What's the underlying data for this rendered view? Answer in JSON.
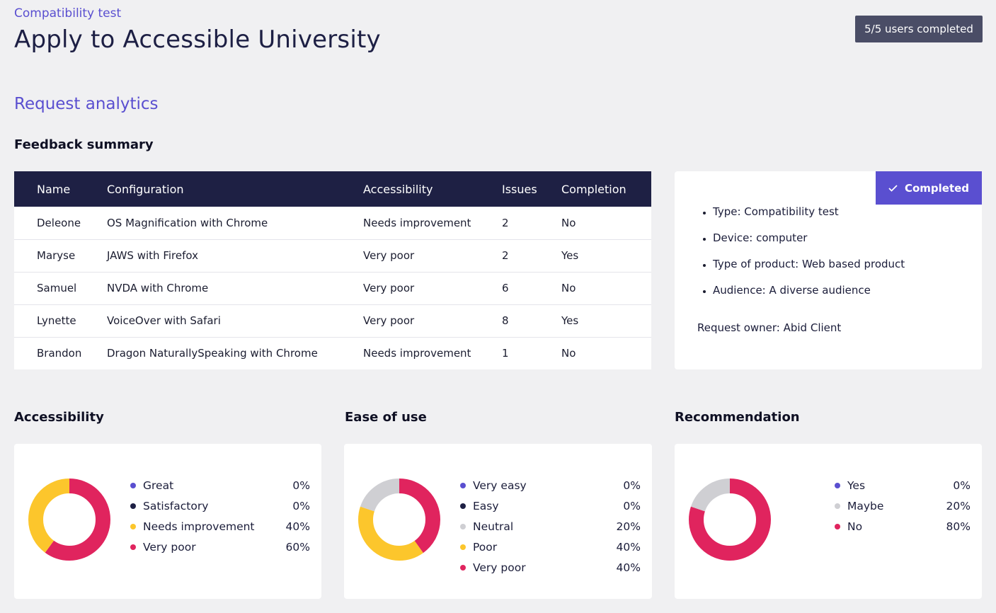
{
  "header": {
    "eyebrow": "Compatibility test",
    "title": "Apply to Accessible University",
    "status": "5/5 users completed"
  },
  "section_title": "Request analytics",
  "feedback": {
    "title": "Feedback summary",
    "columns": [
      "Name",
      "Configuration",
      "Accessibility",
      "Issues",
      "Completion"
    ],
    "rows": [
      [
        "Deleone",
        "OS Magnification with Chrome",
        "Needs improvement",
        "2",
        "No"
      ],
      [
        "Maryse",
        "JAWS with Firefox",
        "Very poor",
        "2",
        "Yes"
      ],
      [
        "Samuel",
        "NVDA with Chrome",
        "Very poor",
        "6",
        "No"
      ],
      [
        "Lynette",
        "VoiceOver with Safari",
        "Very poor",
        "8",
        "Yes"
      ],
      [
        "Brandon",
        "Dragon NaturallySpeaking with Chrome",
        "Needs improvement",
        "1",
        "No"
      ]
    ]
  },
  "info": {
    "badge": "Completed",
    "badge_icon": "check-icon",
    "items": [
      "Type: Compatibility test",
      "Device: computer",
      "Type of product: Web based product",
      "Audience: A diverse audience"
    ],
    "owner": "Request owner: Abid Client"
  },
  "colors": {
    "accent": "#5a4fd0",
    "navy": "#1e2044",
    "neutral": "#cfcfd3",
    "yellow": "#fcc62c",
    "red": "#e0245e"
  },
  "charts": [
    {
      "title": "Accessibility",
      "legend": [
        {
          "label": "Great",
          "value": "0%",
          "pct": 0,
          "color": "#5a4fd0"
        },
        {
          "label": "Satisfactory",
          "value": "0%",
          "pct": 0,
          "color": "#1e2044"
        },
        {
          "label": "Needs improvement",
          "value": "40%",
          "pct": 40,
          "color": "#fcc62c"
        },
        {
          "label": "Very poor",
          "value": "60%",
          "pct": 60,
          "color": "#e0245e"
        }
      ]
    },
    {
      "title": "Ease of use",
      "legend": [
        {
          "label": "Very easy",
          "value": "0%",
          "pct": 0,
          "color": "#5a4fd0"
        },
        {
          "label": "Easy",
          "value": "0%",
          "pct": 0,
          "color": "#1e2044"
        },
        {
          "label": "Neutral",
          "value": "20%",
          "pct": 20,
          "color": "#cfcfd3"
        },
        {
          "label": "Poor",
          "value": "40%",
          "pct": 40,
          "color": "#fcc62c"
        },
        {
          "label": "Very poor",
          "value": "40%",
          "pct": 40,
          "color": "#e0245e"
        }
      ]
    },
    {
      "title": "Recommendation",
      "legend": [
        {
          "label": "Yes",
          "value": "0%",
          "pct": 0,
          "color": "#5a4fd0"
        },
        {
          "label": "Maybe",
          "value": "20%",
          "pct": 20,
          "color": "#cfcfd3"
        },
        {
          "label": "No",
          "value": "80%",
          "pct": 80,
          "color": "#e0245e"
        }
      ]
    }
  ]
}
